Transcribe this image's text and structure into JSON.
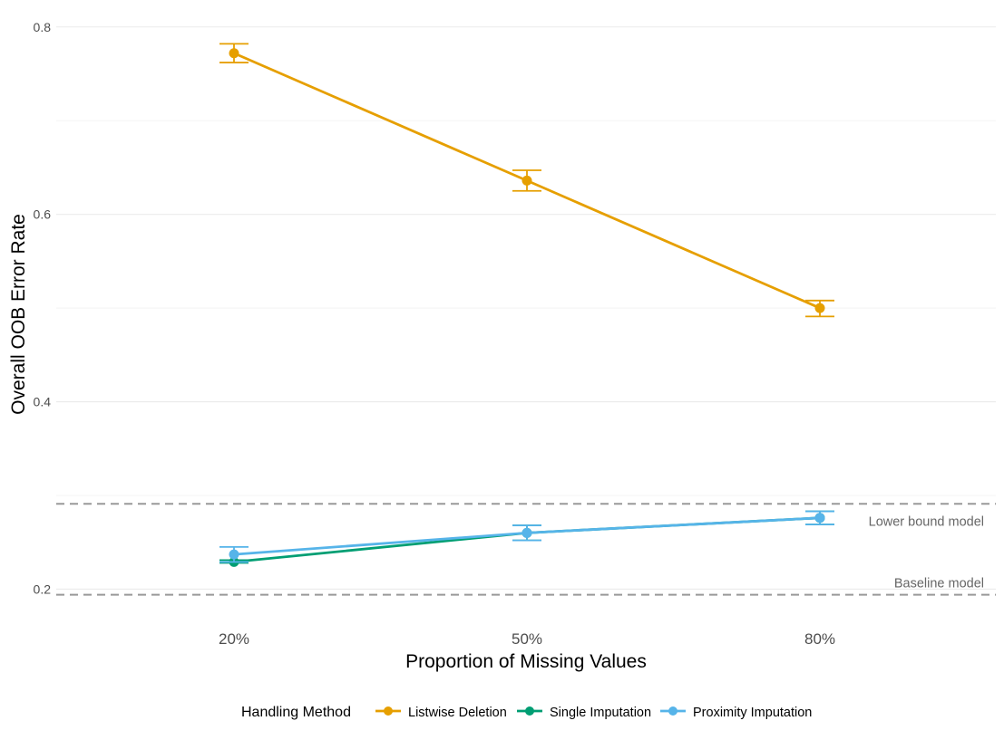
{
  "chart_data": {
    "type": "line",
    "xlabel": "Proportion of Missing Values",
    "ylabel": "Overall OOB Error Rate",
    "categories": [
      "20%",
      "50%",
      "80%"
    ],
    "y_ticks": [
      0.2,
      0.4,
      0.6,
      0.8
    ],
    "y_tick_labels": [
      "0.2",
      "0.4",
      "0.6",
      "0.8"
    ],
    "ylim": [
      0.183,
      0.822
    ],
    "grid": true,
    "series": [
      {
        "name": "Listwise Deletion",
        "color": "#E69F00",
        "values": [
          0.772,
          0.636,
          0.5
        ],
        "error_low": [
          0.762,
          0.625,
          0.491
        ],
        "error_high": [
          0.782,
          0.647,
          0.508
        ]
      },
      {
        "name": "Single Imputation",
        "color": "#009E73",
        "values": [
          0.229,
          0.26,
          0.276
        ],
        "error_low": [
          0.228,
          0.252,
          0.269
        ],
        "error_high": [
          0.231,
          0.268,
          0.283
        ]
      },
      {
        "name": "Proximity Imputation",
        "color": "#56B4E9",
        "values": [
          0.237,
          0.26,
          0.276
        ],
        "error_low": [
          0.229,
          0.252,
          0.269
        ],
        "error_high": [
          0.245,
          0.268,
          0.283
        ]
      }
    ],
    "reference_lines": [
      {
        "label": "Lower bound model",
        "value": 0.291
      },
      {
        "label": "Baseline model",
        "value": 0.194
      }
    ],
    "legend": {
      "title": "Handling Method",
      "position": "bottom"
    }
  }
}
